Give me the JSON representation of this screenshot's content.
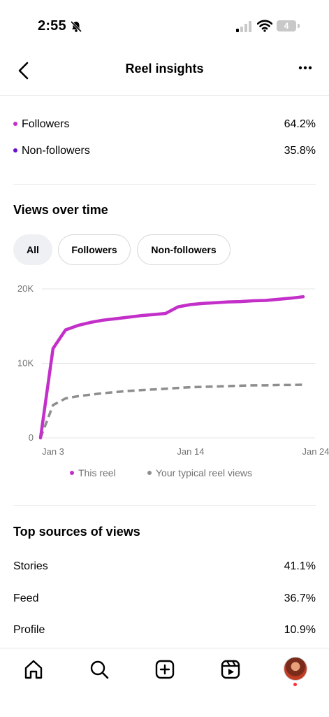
{
  "status": {
    "time": "2:55",
    "battery": "4"
  },
  "header": {
    "title": "Reel insights"
  },
  "audience": [
    {
      "label": "Followers",
      "value": "64.2%",
      "color": "#c32fc9"
    },
    {
      "label": "Non-followers",
      "value": "35.8%",
      "color": "#6a0fd1"
    }
  ],
  "views_over_time": {
    "title": "Views over time",
    "tabs": [
      {
        "label": "All",
        "active": true
      },
      {
        "label": "Followers",
        "active": false
      },
      {
        "label": "Non-followers",
        "active": false
      }
    ]
  },
  "chart_data": {
    "type": "line",
    "title": "",
    "xlabel": "",
    "ylabel": "",
    "ylim": [
      0,
      20000
    ],
    "y_ticks": [
      "20K",
      "10K",
      "0"
    ],
    "x_ticks": [
      "Jan 3",
      "Jan 14",
      "Jan 24"
    ],
    "grid": true,
    "legend_position": "bottom",
    "series": [
      {
        "name": "This reel",
        "color": "#c32fc9",
        "style": "solid",
        "x": [
          3,
          4,
          5,
          6,
          7,
          8,
          9,
          10,
          11,
          12,
          13,
          14,
          15,
          16,
          17,
          18,
          19,
          20,
          21,
          22,
          23,
          24
        ],
        "y": [
          0,
          12000,
          14500,
          15100,
          15500,
          15800,
          16000,
          16200,
          16400,
          16550,
          16700,
          17600,
          17900,
          18050,
          18150,
          18250,
          18300,
          18400,
          18450,
          18600,
          18750,
          18950
        ]
      },
      {
        "name": "Your typical reel views",
        "color": "#8e8e8e",
        "style": "dashed",
        "x": [
          3,
          4,
          5,
          6,
          7,
          8,
          9,
          10,
          11,
          12,
          13,
          14,
          15,
          16,
          17,
          18,
          19,
          20,
          21,
          22,
          23,
          24
        ],
        "y": [
          0,
          4400,
          5300,
          5600,
          5800,
          6000,
          6150,
          6300,
          6400,
          6500,
          6600,
          6700,
          6800,
          6850,
          6900,
          6950,
          7000,
          7050,
          7050,
          7100,
          7100,
          7150
        ]
      }
    ]
  },
  "sources": {
    "title": "Top sources of views",
    "items": [
      {
        "label": "Stories",
        "value": "41.1%"
      },
      {
        "label": "Feed",
        "value": "36.7%"
      },
      {
        "label": "Profile",
        "value": "10.9%"
      }
    ]
  },
  "tabbar": {
    "icons": [
      "home-icon",
      "search-icon",
      "create-icon",
      "reels-icon",
      "profile-avatar"
    ]
  }
}
